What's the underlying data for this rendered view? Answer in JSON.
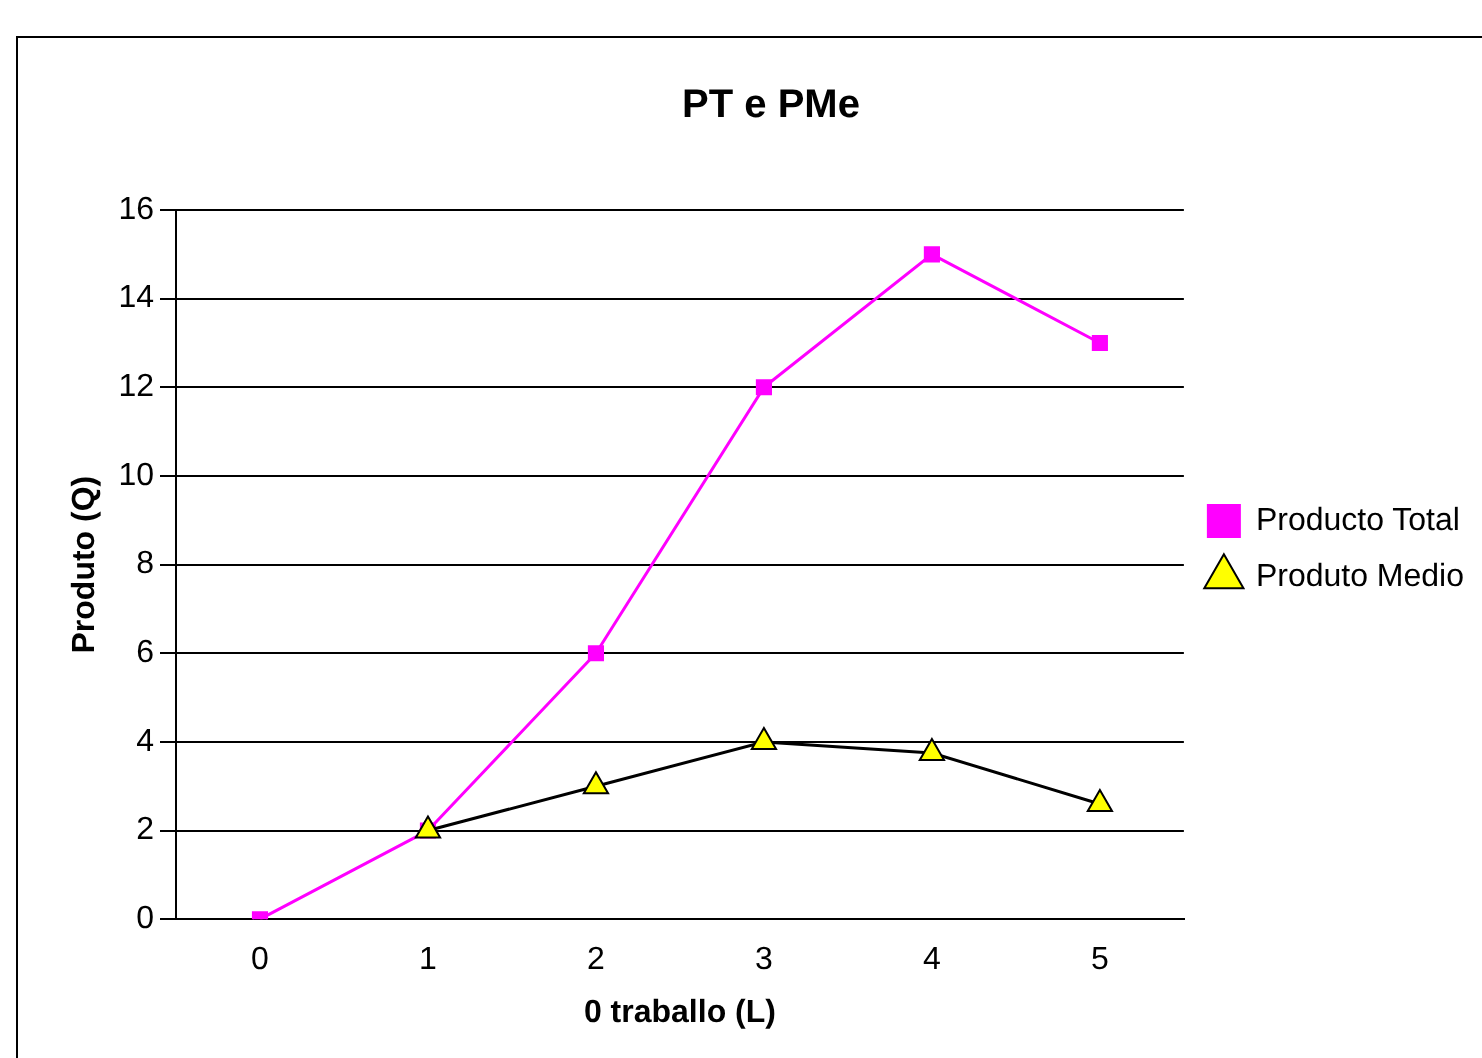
{
  "chart_data": {
    "type": "line",
    "title": "PT e PMe",
    "xlabel": "0 traballo (L)",
    "ylabel": "Produto (Q)",
    "categories": [
      "0",
      "1",
      "2",
      "3",
      "4",
      "5"
    ],
    "series": [
      {
        "name": "Producto Total",
        "color": "#ff00ff",
        "marker": "square",
        "values": [
          0,
          2,
          6,
          12,
          15,
          13
        ]
      },
      {
        "name": "Produto Medio",
        "color": "#000000",
        "marker": "triangle",
        "values": [
          null,
          2,
          3,
          4,
          3.75,
          2.6
        ]
      }
    ],
    "ylim": [
      0,
      16
    ],
    "yticks": [
      0,
      2,
      4,
      6,
      8,
      10,
      12,
      14,
      16
    ],
    "grid": "y",
    "legend": "right"
  }
}
